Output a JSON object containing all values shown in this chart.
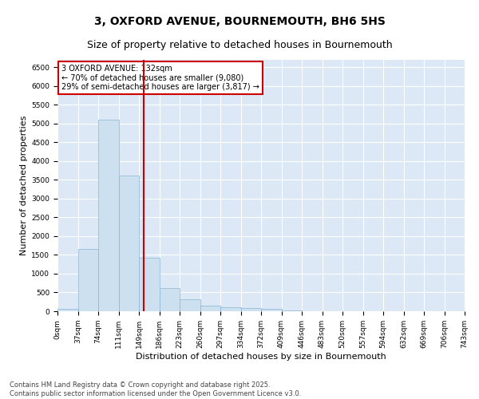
{
  "title": "3, OXFORD AVENUE, BOURNEMOUTH, BH6 5HS",
  "subtitle": "Size of property relative to detached houses in Bournemouth",
  "xlabel": "Distribution of detached houses by size in Bournemouth",
  "ylabel": "Number of detached properties",
  "bar_values": [
    70,
    1650,
    5100,
    3620,
    1430,
    610,
    310,
    150,
    110,
    80,
    55,
    20,
    10,
    5,
    3,
    2,
    1,
    1,
    0,
    0
  ],
  "bar_labels": [
    "0sqm",
    "37sqm",
    "74sqm",
    "111sqm",
    "149sqm",
    "186sqm",
    "223sqm",
    "260sqm",
    "297sqm",
    "334sqm",
    "372sqm",
    "409sqm",
    "446sqm",
    "483sqm",
    "520sqm",
    "557sqm",
    "594sqm",
    "632sqm",
    "669sqm",
    "706sqm",
    "743sqm"
  ],
  "bar_color": "#cce0f0",
  "bar_edge_color": "#8ab4d4",
  "vline_x": 3.75,
  "vline_color": "#cc0000",
  "annotation_text": "3 OXFORD AVENUE: 132sqm\n← 70% of detached houses are smaller (9,080)\n29% of semi-detached houses are larger (3,817) →",
  "annotation_box_color": "#cc0000",
  "annotation_bg": "white",
  "ylim": [
    0,
    6700
  ],
  "yticks": [
    0,
    500,
    1000,
    1500,
    2000,
    2500,
    3000,
    3500,
    4000,
    4500,
    5000,
    5500,
    6000,
    6500
  ],
  "footer_text": "Contains HM Land Registry data © Crown copyright and database right 2025.\nContains public sector information licensed under the Open Government Licence v3.0.",
  "title_fontsize": 10,
  "subtitle_fontsize": 9,
  "label_fontsize": 8,
  "tick_fontsize": 6.5,
  "footer_fontsize": 6,
  "annot_fontsize": 7
}
